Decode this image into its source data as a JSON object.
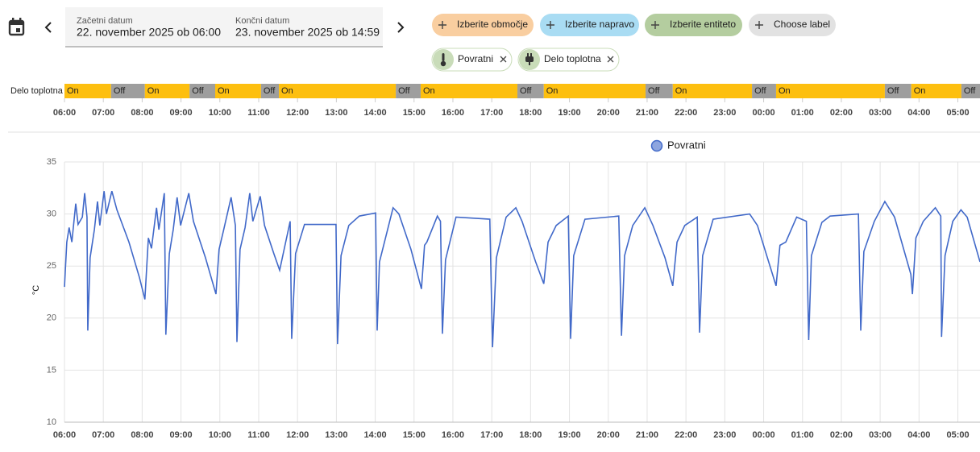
{
  "header": {
    "start_label": "Začetni datum",
    "start_value": "22. november 2025 ob 06:00",
    "end_label": "Končni datum",
    "end_value": "23. november 2025 ob 14:59"
  },
  "pickers": [
    {
      "label": "Izberite območje",
      "color": "#f9cea0"
    },
    {
      "label": "Izberite napravo",
      "color": "#a9dcf3"
    },
    {
      "label": "Izberite entiteto",
      "color": "#b4cd9f"
    },
    {
      "label": "Choose label",
      "color": "#e2e2e2"
    }
  ],
  "selected": [
    {
      "label": "Povratni"
    },
    {
      "label": "Delo toplotna"
    }
  ],
  "timeline": {
    "entity": "Delo toplotna",
    "on_color": "#fdbf0f",
    "off_color": "#9e9e9e",
    "xlim": [
      6,
      29.57
    ],
    "segments": [
      {
        "state": "On",
        "start": 6,
        "end": 7.2
      },
      {
        "state": "Off",
        "start": 7.2,
        "end": 8.07
      },
      {
        "state": "On",
        "start": 8.07,
        "end": 9.22
      },
      {
        "state": "Off",
        "start": 9.22,
        "end": 9.88
      },
      {
        "state": "On",
        "start": 9.88,
        "end": 11.06
      },
      {
        "state": "Off",
        "start": 11.06,
        "end": 11.52
      },
      {
        "state": "On",
        "start": 11.52,
        "end": 14.53
      },
      {
        "state": "Off",
        "start": 14.53,
        "end": 15.17
      },
      {
        "state": "On",
        "start": 15.17,
        "end": 17.66
      },
      {
        "state": "Off",
        "start": 17.66,
        "end": 18.34
      },
      {
        "state": "On",
        "start": 18.34,
        "end": 20.96
      },
      {
        "state": "Off",
        "start": 20.96,
        "end": 21.66
      },
      {
        "state": "On",
        "start": 21.66,
        "end": 23.7
      },
      {
        "state": "Off",
        "start": 23.7,
        "end": 24.32
      },
      {
        "state": "On",
        "start": 24.32,
        "end": 27.12
      },
      {
        "state": "Off",
        "start": 27.12,
        "end": 27.8
      },
      {
        "state": "On",
        "start": 27.8,
        "end": 29.09
      },
      {
        "state": "Off",
        "start": 29.09,
        "end": 29.57
      }
    ],
    "xticks": [
      {
        "value": 6,
        "label": "06:00"
      },
      {
        "value": 7,
        "label": "07:00"
      },
      {
        "value": 8,
        "label": "08:00"
      },
      {
        "value": 9,
        "label": "09:00"
      },
      {
        "value": 10,
        "label": "10:00"
      },
      {
        "value": 11,
        "label": "11:00"
      },
      {
        "value": 12,
        "label": "12:00"
      },
      {
        "value": 13,
        "label": "13:00"
      },
      {
        "value": 14,
        "label": "14:00"
      },
      {
        "value": 15,
        "label": "15:00"
      },
      {
        "value": 16,
        "label": "16:00"
      },
      {
        "value": 17,
        "label": "17:00"
      },
      {
        "value": 18,
        "label": "18:00"
      },
      {
        "value": 19,
        "label": "19:00"
      },
      {
        "value": 20,
        "label": "20:00"
      },
      {
        "value": 21,
        "label": "21:00"
      },
      {
        "value": 22,
        "label": "22:00"
      },
      {
        "value": 23,
        "label": "23:00"
      },
      {
        "value": 24,
        "label": "00:00"
      },
      {
        "value": 25,
        "label": "01:00"
      },
      {
        "value": 26,
        "label": "02:00"
      },
      {
        "value": 27,
        "label": "03:00"
      },
      {
        "value": 28,
        "label": "04:00"
      },
      {
        "value": 29,
        "label": "05:00"
      }
    ]
  },
  "chart_data": {
    "type": "line",
    "ylabel": "°C",
    "grid": true,
    "xlim": [
      6,
      29.57
    ],
    "ylim": [
      10,
      35
    ],
    "yticks": [
      10,
      15,
      20,
      25,
      30,
      35
    ],
    "xticks": [
      {
        "value": 6,
        "label": "06:00"
      },
      {
        "value": 7,
        "label": "07:00"
      },
      {
        "value": 8,
        "label": "08:00"
      },
      {
        "value": 9,
        "label": "09:00"
      },
      {
        "value": 10,
        "label": "10:00"
      },
      {
        "value": 11,
        "label": "11:00"
      },
      {
        "value": 12,
        "label": "12:00"
      },
      {
        "value": 13,
        "label": "13:00"
      },
      {
        "value": 14,
        "label": "14:00"
      },
      {
        "value": 15,
        "label": "15:00"
      },
      {
        "value": 16,
        "label": "16:00"
      },
      {
        "value": 17,
        "label": "17:00"
      },
      {
        "value": 18,
        "label": "18:00"
      },
      {
        "value": 19,
        "label": "19:00"
      },
      {
        "value": 20,
        "label": "20:00"
      },
      {
        "value": 21,
        "label": "21:00"
      },
      {
        "value": 22,
        "label": "22:00"
      },
      {
        "value": 23,
        "label": "23:00"
      },
      {
        "value": 24,
        "label": "00:00"
      },
      {
        "value": 25,
        "label": "01:00"
      },
      {
        "value": 26,
        "label": "02:00"
      },
      {
        "value": 27,
        "label": "03:00"
      },
      {
        "value": 28,
        "label": "04:00"
      },
      {
        "value": 29,
        "label": "05:00"
      }
    ],
    "x": [
      6,
      6.06,
      6.12,
      6.19,
      6.29,
      6.35,
      6.46,
      6.52,
      6.58,
      6.6,
      6.66,
      6.77,
      6.85,
      6.91,
      7.02,
      7.08,
      7.22,
      7.35,
      7.66,
      7.93,
      8.07,
      8.16,
      8.24,
      8.37,
      8.43,
      8.57,
      8.61,
      8.7,
      8.8,
      8.9,
      8.99,
      9.2,
      9.32,
      9.63,
      9.9,
      9.98,
      10.1,
      10.29,
      10.4,
      10.44,
      10.52,
      10.65,
      10.77,
      10.85,
      11.04,
      11.15,
      11.39,
      11.54,
      11.81,
      11.85,
      11.95,
      12.18,
      12.99,
      13.03,
      13.12,
      13.32,
      13.59,
      14.01,
      14.05,
      14.11,
      14.46,
      14.61,
      14.92,
      15.19,
      15.27,
      15.33,
      15.6,
      15.68,
      15.73,
      15.81,
      16.08,
      16.95,
      17.02,
      17.12,
      17.37,
      17.62,
      17.78,
      18.13,
      18.34,
      18.45,
      18.66,
      18.97,
      19.03,
      19.11,
      19.4,
      20.27,
      20.34,
      20.42,
      20.63,
      20.94,
      21.15,
      21.46,
      21.66,
      21.77,
      21.97,
      22.29,
      22.35,
      22.43,
      22.7,
      23.64,
      23.84,
      24.32,
      24.42,
      24.57,
      24.85,
      25.1,
      25.16,
      25.23,
      25.5,
      25.71,
      26.44,
      26.5,
      26.58,
      26.85,
      27.12,
      27.37,
      27.79,
      27.83,
      27.92,
      28.11,
      28.42,
      28.56,
      28.58,
      28.67,
      28.87,
      29.08,
      29.24,
      29.57
    ],
    "series": [
      {
        "name": "Povratni",
        "color": "#4169c9",
        "values": [
          23,
          27.3,
          28.7,
          27.3,
          31,
          29,
          29.7,
          32,
          29.7,
          18.8,
          25.8,
          28.5,
          31.2,
          28.9,
          32.2,
          30,
          32.2,
          30.4,
          27.3,
          23.9,
          21.8,
          27.7,
          26.7,
          30.6,
          28.5,
          32,
          18.4,
          26.2,
          28.5,
          31.6,
          28.9,
          32,
          29.3,
          25.8,
          22.3,
          26.6,
          28.5,
          31.6,
          28.9,
          17.7,
          26.6,
          28.7,
          32,
          29.3,
          31.7,
          28.9,
          26.2,
          24.6,
          29.3,
          18,
          26.2,
          29,
          29,
          17.5,
          26,
          28.9,
          29.8,
          30.1,
          18.8,
          25.4,
          30.6,
          30,
          26.6,
          22.8,
          27,
          27.3,
          29.8,
          29.3,
          18.5,
          25.6,
          29.7,
          29.5,
          17.2,
          25.8,
          29.7,
          30.6,
          29.3,
          25.4,
          23.3,
          27.3,
          28.9,
          29.8,
          18,
          26,
          29.5,
          29.8,
          18.3,
          26,
          28.9,
          30.6,
          28.9,
          25.8,
          23.1,
          27.3,
          28.9,
          29.7,
          18.6,
          26,
          29.5,
          30,
          28.9,
          23.1,
          27,
          27.3,
          29.7,
          29.3,
          17.9,
          26,
          29.2,
          29.8,
          30,
          18.8,
          26.4,
          29.3,
          31.2,
          29.7,
          24.2,
          22.3,
          27.7,
          29.3,
          30.6,
          29.8,
          18.2,
          26,
          29.3,
          30.4,
          29.7,
          25.4
        ]
      }
    ]
  }
}
